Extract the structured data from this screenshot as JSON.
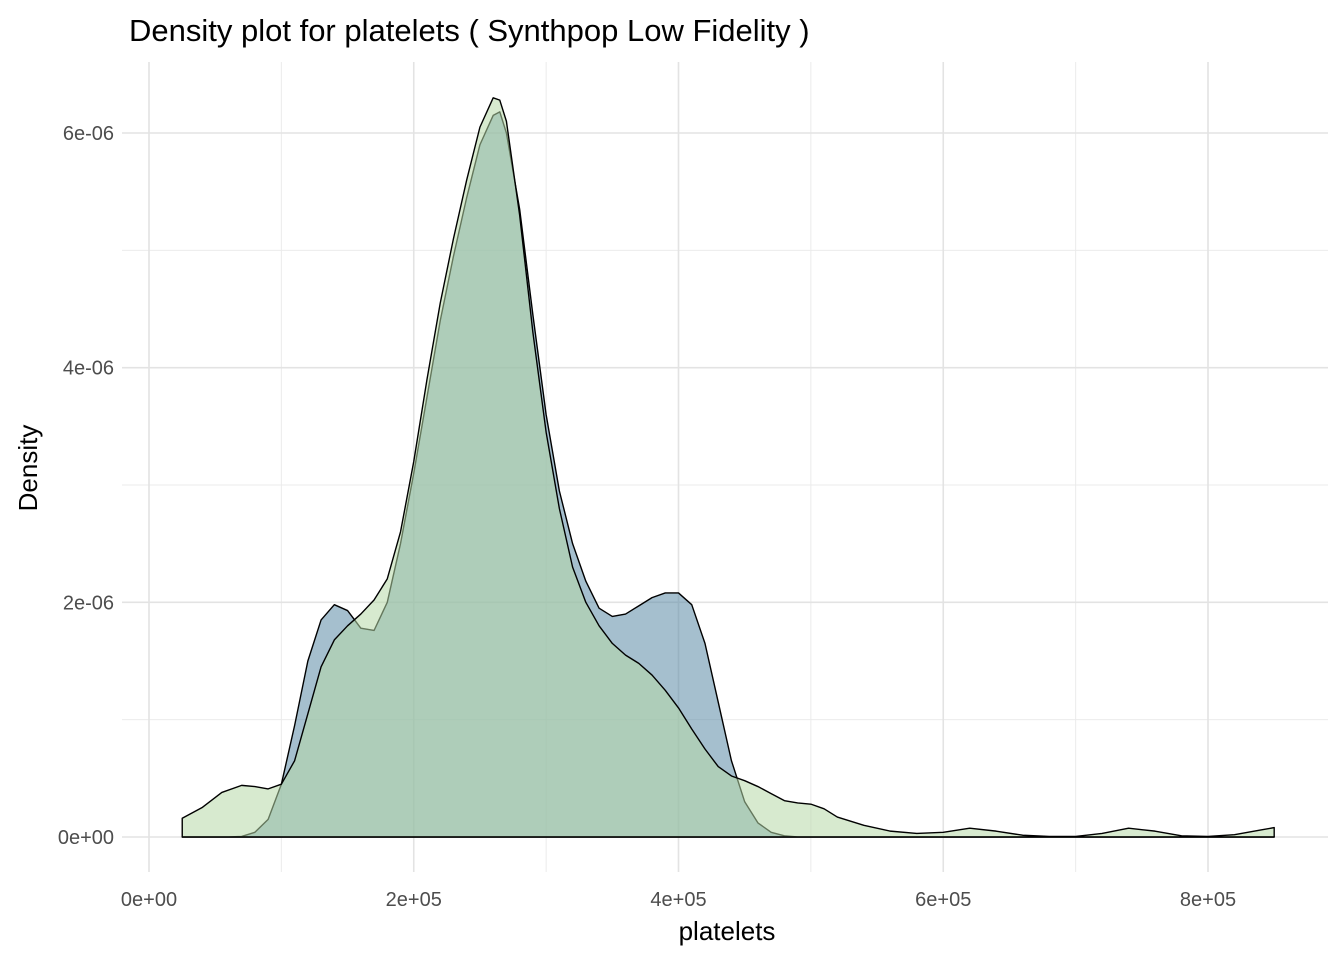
{
  "chart_data": {
    "type": "area",
    "title": "Density plot for platelets ( Synthpop Low Fidelity )",
    "xlabel": "platelets",
    "ylabel": "Density",
    "xlim": [
      25100,
      850000
    ],
    "ylim": [
      0,
      6.3e-06
    ],
    "x_ticks": [
      0,
      200000,
      400000,
      600000,
      800000
    ],
    "x_tick_labels": [
      "0e+00",
      "2e+05",
      "4e+05",
      "6e+05",
      "8e+05"
    ],
    "y_ticks": [
      0,
      2e-06,
      4e-06,
      6e-06
    ],
    "y_tick_labels": [
      "0e+00",
      "2e-06",
      "4e-06",
      "6e-06"
    ],
    "grid": true,
    "legend": "none",
    "series": [
      {
        "color": "#5b8aa6",
        "opacity": 0.55,
        "points": [
          [
            25100,
            0
          ],
          [
            50000,
            0
          ],
          [
            60000,
            0
          ],
          [
            70000,
            5e-09
          ],
          [
            80000,
            4e-08
          ],
          [
            90000,
            1.5e-07
          ],
          [
            100000,
            4.5e-07
          ],
          [
            110000,
            9.5e-07
          ],
          [
            120000,
            1.5e-06
          ],
          [
            130000,
            1.85e-06
          ],
          [
            140000,
            1.98e-06
          ],
          [
            150000,
            1.93e-06
          ],
          [
            160000,
            1.78e-06
          ],
          [
            170000,
            1.76e-06
          ],
          [
            180000,
            2e-06
          ],
          [
            190000,
            2.5e-06
          ],
          [
            200000,
            3.1e-06
          ],
          [
            210000,
            3.75e-06
          ],
          [
            220000,
            4.4e-06
          ],
          [
            230000,
            4.95e-06
          ],
          [
            240000,
            5.45e-06
          ],
          [
            250000,
            5.9e-06
          ],
          [
            260000,
            6.15e-06
          ],
          [
            265000,
            6.18e-06
          ],
          [
            270000,
            6e-06
          ],
          [
            280000,
            5.35e-06
          ],
          [
            290000,
            4.45e-06
          ],
          [
            300000,
            3.6e-06
          ],
          [
            310000,
            2.95e-06
          ],
          [
            320000,
            2.5e-06
          ],
          [
            330000,
            2.18e-06
          ],
          [
            340000,
            1.95e-06
          ],
          [
            350000,
            1.88e-06
          ],
          [
            360000,
            1.9e-06
          ],
          [
            370000,
            1.97e-06
          ],
          [
            380000,
            2.04e-06
          ],
          [
            390000,
            2.08e-06
          ],
          [
            400000,
            2.08e-06
          ],
          [
            410000,
            1.98e-06
          ],
          [
            420000,
            1.65e-06
          ],
          [
            430000,
            1.15e-06
          ],
          [
            440000,
            6.5e-07
          ],
          [
            450000,
            3e-07
          ],
          [
            460000,
            1.2e-07
          ],
          [
            470000,
            4e-08
          ],
          [
            480000,
            1e-08
          ],
          [
            490000,
            0
          ],
          [
            850000,
            0
          ]
        ]
      },
      {
        "color": "#b7d9a8",
        "opacity": 0.55,
        "points": [
          [
            25100,
            1.6e-07
          ],
          [
            40000,
            2.5e-07
          ],
          [
            55000,
            3.8e-07
          ],
          [
            70000,
            4.4e-07
          ],
          [
            80000,
            4.3e-07
          ],
          [
            90000,
            4.1e-07
          ],
          [
            100000,
            4.5e-07
          ],
          [
            110000,
            6.5e-07
          ],
          [
            120000,
            1.05e-06
          ],
          [
            130000,
            1.45e-06
          ],
          [
            140000,
            1.68e-06
          ],
          [
            150000,
            1.8e-06
          ],
          [
            160000,
            1.9e-06
          ],
          [
            170000,
            2.02e-06
          ],
          [
            180000,
            2.2e-06
          ],
          [
            190000,
            2.6e-06
          ],
          [
            200000,
            3.2e-06
          ],
          [
            210000,
            3.9e-06
          ],
          [
            220000,
            4.55e-06
          ],
          [
            230000,
            5.1e-06
          ],
          [
            240000,
            5.6e-06
          ],
          [
            250000,
            6.05e-06
          ],
          [
            260000,
            6.3e-06
          ],
          [
            265000,
            6.28e-06
          ],
          [
            270000,
            6.1e-06
          ],
          [
            280000,
            5.3e-06
          ],
          [
            290000,
            4.3e-06
          ],
          [
            300000,
            3.45e-06
          ],
          [
            310000,
            2.8e-06
          ],
          [
            320000,
            2.3e-06
          ],
          [
            330000,
            2e-06
          ],
          [
            340000,
            1.8e-06
          ],
          [
            350000,
            1.65e-06
          ],
          [
            360000,
            1.55e-06
          ],
          [
            370000,
            1.48e-06
          ],
          [
            380000,
            1.38e-06
          ],
          [
            390000,
            1.25e-06
          ],
          [
            400000,
            1.1e-06
          ],
          [
            410000,
            9.2e-07
          ],
          [
            420000,
            7.5e-07
          ],
          [
            430000,
            6e-07
          ],
          [
            440000,
            5.2e-07
          ],
          [
            450000,
            4.8e-07
          ],
          [
            460000,
            4.3e-07
          ],
          [
            470000,
            3.7e-07
          ],
          [
            480000,
            3.1e-07
          ],
          [
            490000,
            2.9e-07
          ],
          [
            500000,
            2.8e-07
          ],
          [
            510000,
            2.4e-07
          ],
          [
            520000,
            1.7e-07
          ],
          [
            540000,
            1e-07
          ],
          [
            560000,
            5e-08
          ],
          [
            580000,
            3e-08
          ],
          [
            600000,
            4e-08
          ],
          [
            620000,
            7.5e-08
          ],
          [
            640000,
            5e-08
          ],
          [
            660000,
            1.5e-08
          ],
          [
            680000,
            5e-09
          ],
          [
            700000,
            5e-09
          ],
          [
            720000,
            3e-08
          ],
          [
            740000,
            7.5e-08
          ],
          [
            760000,
            5e-08
          ],
          [
            780000,
            1e-08
          ],
          [
            800000,
            5e-09
          ],
          [
            820000,
            2e-08
          ],
          [
            840000,
            6e-08
          ],
          [
            850000,
            8e-08
          ]
        ]
      }
    ]
  }
}
